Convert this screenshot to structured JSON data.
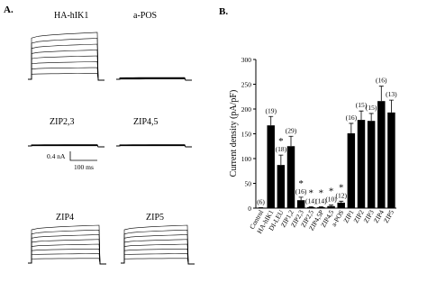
{
  "panel_a": {
    "label": "A.",
    "traces": [
      "HA-hIK1",
      "a-POS",
      "ZIP2,3",
      "ZIP4,5",
      "ZIP4",
      "ZIP5"
    ],
    "scale_current": "0.4 nA",
    "scale_time": "100 ms"
  },
  "chart_data": {
    "type": "bar",
    "panel_label": "B.",
    "ylabel": "Current density (pA/pF)",
    "categories": [
      "Control",
      "HA-hIK1",
      "DI-LEU",
      "ZIP1,2",
      "ZIP2,3",
      "ZIP2,5",
      "ZIP4,5P",
      "ZIP4,5",
      "a-POS",
      "ZIP1",
      "ZIP2",
      "ZIP3",
      "ZIP4",
      "ZIP5"
    ],
    "values": [
      1,
      167,
      87,
      125,
      16,
      2,
      2,
      4,
      11,
      151,
      178,
      176,
      216,
      193
    ],
    "errors": [
      0,
      18,
      20,
      20,
      6,
      1,
      1,
      2,
      3,
      20,
      18,
      15,
      30,
      25
    ],
    "n_labels": [
      "(6)",
      "(19)",
      "(18)",
      "(29)",
      "(16)",
      "(14)",
      "(14)",
      "(10)",
      "(12)",
      "(16)",
      "(15)",
      "(15)",
      "(16)",
      "(13)"
    ],
    "significance": [
      null,
      null,
      "*",
      null,
      "*",
      "*",
      "*",
      "*",
      "*",
      null,
      null,
      null,
      null,
      null
    ],
    "color": "#000000",
    "ylim": [
      0,
      300
    ],
    "yticks": [
      0,
      50,
      100,
      150,
      200,
      250,
      300
    ]
  }
}
